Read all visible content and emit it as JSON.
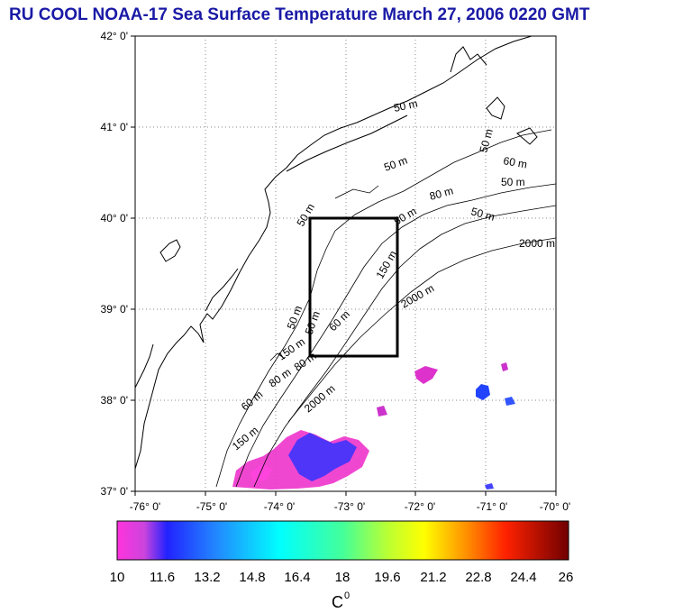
{
  "title": "RU COOL  NOAA-17 Sea Surface Temperature March 27, 2006 0220 GMT",
  "map": {
    "lon_range": [
      -76,
      -70
    ],
    "lat_range": [
      37,
      42
    ],
    "lon_ticks": [
      "-76° 0'",
      "-75° 0'",
      "-74° 0'",
      "-73° 0'",
      "-72° 0'",
      "-71° 0'",
      "-70° 0'"
    ],
    "lat_ticks": [
      "37° 0'",
      "38° 0'",
      "39° 0'",
      "40° 0'",
      "41° 0'",
      "42° 0'"
    ],
    "box": {
      "lon_min": -73.5,
      "lon_max": -72.5,
      "lat_min": 38.5,
      "lat_max": 40.0
    },
    "contour_labels": [
      "50 m",
      "50 m",
      "50 m",
      "60 m",
      "50 m",
      "80 m",
      "50 m",
      "2000 m",
      "50 m",
      "150 m",
      "50 m",
      "50 m",
      "60 m",
      "2000 m",
      "50 m",
      "80 m",
      "60 m",
      "2000 m",
      "80 m",
      "150 m",
      "150 m"
    ]
  },
  "colorbar": {
    "ticks": [
      "10",
      "11.6",
      "13.2",
      "14.8",
      "16.4",
      "18",
      "19.6",
      "21.2",
      "22.8",
      "24.4",
      "26"
    ],
    "unit": "C",
    "unit_sup": "0",
    "colors": [
      "#ff33cc",
      "#0000ff",
      "#00ffff",
      "#33ff88",
      "#ffff00",
      "#ff8800",
      "#ff0000",
      "#800000"
    ]
  }
}
